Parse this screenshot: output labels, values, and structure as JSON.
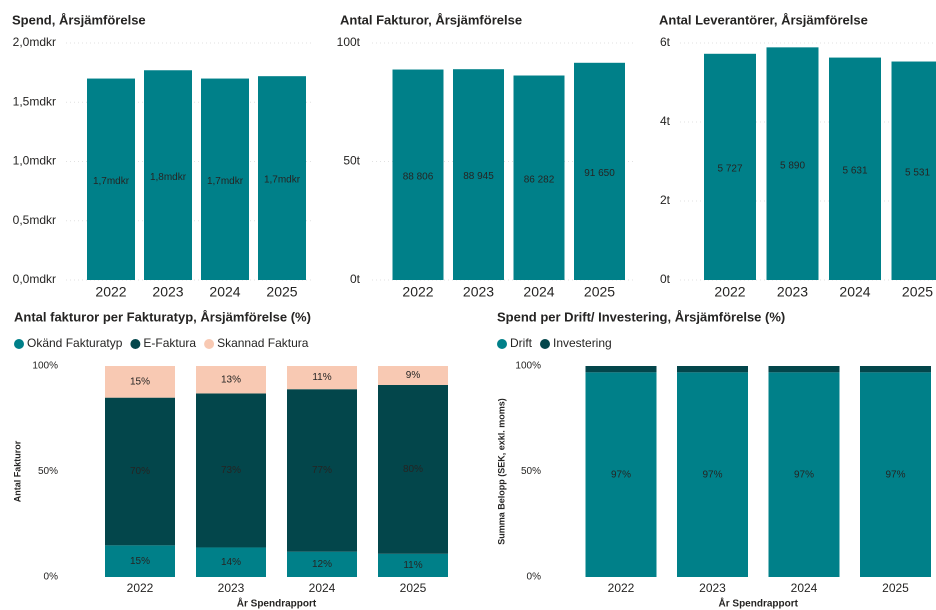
{
  "chart_data": [
    {
      "type": "bar",
      "title": "Spend, Årsjämförelse",
      "categories": [
        "2022",
        "2023",
        "2024",
        "2025"
      ],
      "values": [
        1.7,
        1.77,
        1.7,
        1.72
      ],
      "value_labels": [
        "1,7mdkr",
        "1,8mdkr",
        "1,7mdkr",
        "1,7mdkr"
      ],
      "color": "#008089",
      "ylim": [
        0,
        2.0
      ],
      "yticks": [
        {
          "value": 0,
          "label": "0,0mdkr"
        },
        {
          "value": 0.5,
          "label": "0,5mdkr"
        },
        {
          "value": 1.0,
          "label": "1,0mdkr"
        },
        {
          "value": 1.5,
          "label": "1,5mdkr"
        },
        {
          "value": 2.0,
          "label": "2,0mdkr"
        }
      ],
      "grid": true
    },
    {
      "type": "bar",
      "title": "Antal Fakturor, Årsjämförelse",
      "categories": [
        "2022",
        "2023",
        "2024",
        "2025"
      ],
      "values": [
        88806,
        88945,
        86282,
        91650
      ],
      "value_labels": [
        "88 806",
        "88 945",
        "86 282",
        "91 650"
      ],
      "color": "#008089",
      "ylim": [
        0,
        100000
      ],
      "yticks": [
        {
          "value": 0,
          "label": "0t"
        },
        {
          "value": 50000,
          "label": "50t"
        },
        {
          "value": 100000,
          "label": "100t"
        }
      ],
      "grid": true
    },
    {
      "type": "bar",
      "title": "Antal Leverantörer, Årsjämförelse",
      "categories": [
        "2022",
        "2023",
        "2024",
        "2025"
      ],
      "values": [
        5727,
        5890,
        5631,
        5531
      ],
      "value_labels": [
        "5 727",
        "5 890",
        "5 631",
        "5 531"
      ],
      "color": "#008089",
      "ylim": [
        0,
        6000
      ],
      "yticks": [
        {
          "value": 0,
          "label": "0t"
        },
        {
          "value": 2000,
          "label": "2t"
        },
        {
          "value": 4000,
          "label": "4t"
        },
        {
          "value": 6000,
          "label": "6t"
        }
      ],
      "grid": true
    },
    {
      "type": "stacked_bar",
      "title": "Antal fakturor per Fakturatyp, Årsjämförelse (%)",
      "x_label": "År Spendrapport",
      "y_label": "Antal Fakturor",
      "categories": [
        "2022",
        "2023",
        "2024",
        "2025"
      ],
      "series": [
        {
          "name": "Okänd Fakturatyp",
          "color": "#008089",
          "values": [
            15,
            14,
            12,
            11
          ],
          "value_labels": [
            "15%",
            "14%",
            "12%",
            "11%"
          ]
        },
        {
          "name": "E-Faktura",
          "color": "#03464b",
          "values": [
            70,
            73,
            77,
            80
          ],
          "value_labels": [
            "70%",
            "73%",
            "77%",
            "80%"
          ]
        },
        {
          "name": "Skannad Faktura",
          "color": "#f8c9b3",
          "values": [
            15,
            13,
            11,
            9
          ],
          "value_labels": [
            "15%",
            "13%",
            "11%",
            "9%"
          ]
        }
      ],
      "ylim": [
        0,
        100
      ],
      "yticks": [
        {
          "value": 0,
          "label": "0%"
        },
        {
          "value": 50,
          "label": "50%"
        },
        {
          "value": 100,
          "label": "100%"
        }
      ],
      "grid": false
    },
    {
      "type": "stacked_bar",
      "title": "Spend per Drift/ Investering, Årsjämförelse (%)",
      "x_label": "År Spendrapport",
      "y_label": "Summa Belopp (SEK, exkl. moms)",
      "categories": [
        "2022",
        "2023",
        "2024",
        "2025"
      ],
      "series": [
        {
          "name": "Drift",
          "color": "#008089",
          "values": [
            97,
            97,
            97,
            97
          ],
          "value_labels": [
            "97%",
            "97%",
            "97%",
            "97%"
          ]
        },
        {
          "name": "Investering",
          "color": "#03464b",
          "values": [
            3,
            3,
            3,
            3
          ]
        }
      ],
      "ylim": [
        0,
        100
      ],
      "yticks": [
        {
          "value": 0,
          "label": "0%"
        },
        {
          "value": 50,
          "label": "50%"
        },
        {
          "value": 100,
          "label": "100%"
        }
      ],
      "grid": false
    }
  ]
}
